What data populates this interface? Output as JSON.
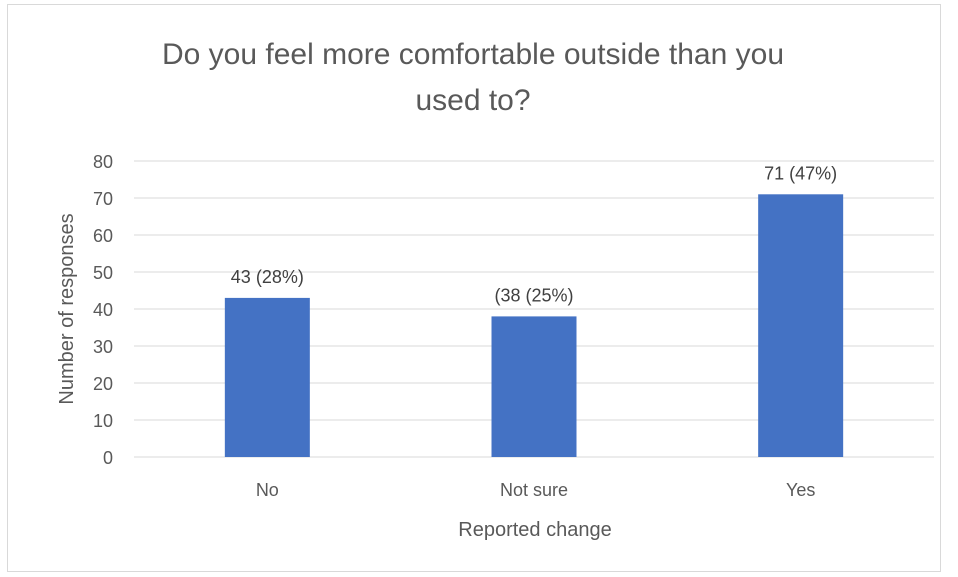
{
  "chart_data": {
    "type": "bar",
    "title_lines": [
      "Do you feel more comfortable outside than you",
      "used to?"
    ],
    "xlabel": "Reported change",
    "ylabel": "Number of responses",
    "categories": [
      "No",
      "Not sure",
      "Yes"
    ],
    "values": [
      43,
      38,
      71
    ],
    "data_labels": [
      "43 (28%)",
      "(38 (25%)",
      "71 (47%)"
    ],
    "ylim": [
      0,
      80
    ],
    "yticks": [
      0,
      10,
      20,
      30,
      40,
      50,
      60,
      70,
      80
    ],
    "grid": true,
    "legend": "none",
    "colors": {
      "bar": "#4472c4",
      "grid": "#d9d9d9",
      "text": "#595959"
    }
  }
}
